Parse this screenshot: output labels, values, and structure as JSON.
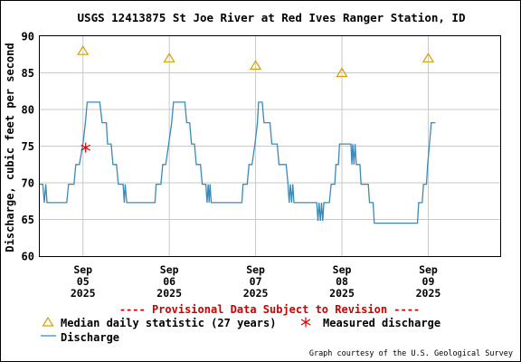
{
  "chart_data": {
    "type": "line",
    "title": "USGS 12413875 St Joe River at Red Ives Ranger Station, ID",
    "ylabel": "Discharge, cubic feet per second",
    "xlabel": "",
    "ylim": [
      60,
      90
    ],
    "yticks": [
      60,
      65,
      70,
      75,
      80,
      85,
      90
    ],
    "xlim": [
      "2025-09-04 12:00",
      "2025-09-09 20:00"
    ],
    "xticks": [
      {
        "x": "2025-09-05 00:00",
        "label": "Sep\n05\n2025"
      },
      {
        "x": "2025-09-06 00:00",
        "label": "Sep\n06\n2025"
      },
      {
        "x": "2025-09-07 00:00",
        "label": "Sep\n07\n2025"
      },
      {
        "x": "2025-09-08 00:00",
        "label": "Sep\n08\n2025"
      },
      {
        "x": "2025-09-09 00:00",
        "label": "Sep\n09\n2025"
      }
    ],
    "grid": true,
    "provisional_note": "---- Provisional Data Subject to Revision ----",
    "courtesy": "Graph courtesy of the U.S. Geological Survey",
    "series": [
      {
        "name": "Median daily statistic (27 years)",
        "marker": "triangle",
        "color": "#d4a000",
        "points": [
          {
            "x": "2025-09-05 00:00",
            "y": 88
          },
          {
            "x": "2025-09-06 00:00",
            "y": 87
          },
          {
            "x": "2025-09-07 00:00",
            "y": 86
          },
          {
            "x": "2025-09-08 00:00",
            "y": 85
          },
          {
            "x": "2025-09-09 00:00",
            "y": 87
          }
        ]
      },
      {
        "name": "Measured discharge",
        "marker": "asterisk",
        "color": "#dd0000",
        "points": [
          {
            "x": "2025-09-05 00:45",
            "y": 74.8
          }
        ]
      },
      {
        "name": "Discharge",
        "marker": "line",
        "color": "#3a8ab8",
        "points": [
          {
            "x": "2025-09-04 12:00",
            "y": 69.8
          },
          {
            "x": "2025-09-04 12:50",
            "y": 69.8
          },
          {
            "x": "2025-09-04 13:15",
            "y": 67.3
          },
          {
            "x": "2025-09-04 13:40",
            "y": 69.8
          },
          {
            "x": "2025-09-04 14:00",
            "y": 67.3
          },
          {
            "x": "2025-09-04 19:30",
            "y": 67.3
          },
          {
            "x": "2025-09-04 20:00",
            "y": 69.8
          },
          {
            "x": "2025-09-04 21:30",
            "y": 69.8
          },
          {
            "x": "2025-09-04 22:00",
            "y": 72.5
          },
          {
            "x": "2025-09-04 23:00",
            "y": 72.5
          },
          {
            "x": "2025-09-05 00:00",
            "y": 75.3
          },
          {
            "x": "2025-09-05 00:40",
            "y": 78.2
          },
          {
            "x": "2025-09-05 01:10",
            "y": 81
          },
          {
            "x": "2025-09-05 04:40",
            "y": 81
          },
          {
            "x": "2025-09-05 05:20",
            "y": 78.2
          },
          {
            "x": "2025-09-05 06:30",
            "y": 78.2
          },
          {
            "x": "2025-09-05 06:50",
            "y": 75.3
          },
          {
            "x": "2025-09-05 07:50",
            "y": 75.3
          },
          {
            "x": "2025-09-05 08:20",
            "y": 72.5
          },
          {
            "x": "2025-09-05 09:20",
            "y": 72.5
          },
          {
            "x": "2025-09-05 09:50",
            "y": 69.8
          },
          {
            "x": "2025-09-05 11:10",
            "y": 69.8
          },
          {
            "x": "2025-09-05 11:30",
            "y": 67.3
          },
          {
            "x": "2025-09-05 11:45",
            "y": 69.8
          },
          {
            "x": "2025-09-05 12:10",
            "y": 67.3
          },
          {
            "x": "2025-09-05 20:00",
            "y": 67.3
          },
          {
            "x": "2025-09-05 20:20",
            "y": 69.8
          },
          {
            "x": "2025-09-05 21:40",
            "y": 69.8
          },
          {
            "x": "2025-09-05 22:10",
            "y": 72.5
          },
          {
            "x": "2025-09-05 23:00",
            "y": 72.5
          },
          {
            "x": "2025-09-05 23:50",
            "y": 75.3
          },
          {
            "x": "2025-09-06 00:40",
            "y": 78.2
          },
          {
            "x": "2025-09-06 01:10",
            "y": 81
          },
          {
            "x": "2025-09-06 04:20",
            "y": 81
          },
          {
            "x": "2025-09-06 04:50",
            "y": 78.2
          },
          {
            "x": "2025-09-06 05:40",
            "y": 78.2
          },
          {
            "x": "2025-09-06 06:10",
            "y": 75.3
          },
          {
            "x": "2025-09-06 07:00",
            "y": 75.3
          },
          {
            "x": "2025-09-06 07:30",
            "y": 72.5
          },
          {
            "x": "2025-09-06 08:40",
            "y": 72.5
          },
          {
            "x": "2025-09-06 09:10",
            "y": 69.8
          },
          {
            "x": "2025-09-06 10:10",
            "y": 69.8
          },
          {
            "x": "2025-09-06 10:30",
            "y": 67.3
          },
          {
            "x": "2025-09-06 10:50",
            "y": 69.8
          },
          {
            "x": "2025-09-06 11:05",
            "y": 67.3
          },
          {
            "x": "2025-09-06 11:20",
            "y": 69.8
          },
          {
            "x": "2025-09-06 11:40",
            "y": 67.3
          },
          {
            "x": "2025-09-06 20:10",
            "y": 67.3
          },
          {
            "x": "2025-09-06 20:30",
            "y": 69.8
          },
          {
            "x": "2025-09-06 21:40",
            "y": 69.8
          },
          {
            "x": "2025-09-06 22:10",
            "y": 72.5
          },
          {
            "x": "2025-09-06 23:00",
            "y": 72.5
          },
          {
            "x": "2025-09-06 23:50",
            "y": 75.3
          },
          {
            "x": "2025-09-07 00:30",
            "y": 78.2
          },
          {
            "x": "2025-09-07 00:50",
            "y": 81
          },
          {
            "x": "2025-09-07 01:50",
            "y": 81
          },
          {
            "x": "2025-09-07 02:20",
            "y": 78.2
          },
          {
            "x": "2025-09-07 04:00",
            "y": 78.2
          },
          {
            "x": "2025-09-07 04:30",
            "y": 75.3
          },
          {
            "x": "2025-09-07 06:00",
            "y": 75.3
          },
          {
            "x": "2025-09-07 06:30",
            "y": 72.5
          },
          {
            "x": "2025-09-07 08:30",
            "y": 72.5
          },
          {
            "x": "2025-09-07 09:00",
            "y": 69.8
          },
          {
            "x": "2025-09-07 09:20",
            "y": 67.3
          },
          {
            "x": "2025-09-07 09:40",
            "y": 69.8
          },
          {
            "x": "2025-09-07 10:00",
            "y": 67.3
          },
          {
            "x": "2025-09-07 10:20",
            "y": 69.8
          },
          {
            "x": "2025-09-07 10:40",
            "y": 67.3
          },
          {
            "x": "2025-09-07 17:00",
            "y": 67.3
          },
          {
            "x": "2025-09-07 17:20",
            "y": 64.8
          },
          {
            "x": "2025-09-07 17:40",
            "y": 67.3
          },
          {
            "x": "2025-09-07 18:00",
            "y": 64.8
          },
          {
            "x": "2025-09-07 18:20",
            "y": 67.3
          },
          {
            "x": "2025-09-07 18:40",
            "y": 64.8
          },
          {
            "x": "2025-09-07 19:00",
            "y": 67.3
          },
          {
            "x": "2025-09-07 20:30",
            "y": 67.3
          },
          {
            "x": "2025-09-07 21:00",
            "y": 69.8
          },
          {
            "x": "2025-09-07 22:00",
            "y": 69.8
          },
          {
            "x": "2025-09-07 22:20",
            "y": 72.5
          },
          {
            "x": "2025-09-07 23:00",
            "y": 72.5
          },
          {
            "x": "2025-09-07 23:20",
            "y": 75.3
          },
          {
            "x": "2025-09-08 02:30",
            "y": 75.3
          },
          {
            "x": "2025-09-08 02:45",
            "y": 72.5
          },
          {
            "x": "2025-09-08 03:00",
            "y": 75.3
          },
          {
            "x": "2025-09-08 03:20",
            "y": 72.5
          },
          {
            "x": "2025-09-08 03:40",
            "y": 75.3
          },
          {
            "x": "2025-09-08 04:00",
            "y": 72.5
          },
          {
            "x": "2025-09-08 05:00",
            "y": 72.5
          },
          {
            "x": "2025-09-08 05:20",
            "y": 69.8
          },
          {
            "x": "2025-09-08 07:20",
            "y": 69.8
          },
          {
            "x": "2025-09-08 07:40",
            "y": 67.3
          },
          {
            "x": "2025-09-08 08:40",
            "y": 67.3
          },
          {
            "x": "2025-09-08 09:00",
            "y": 64.5
          },
          {
            "x": "2025-09-08 21:00",
            "y": 64.5
          },
          {
            "x": "2025-09-08 21:20",
            "y": 67.3
          },
          {
            "x": "2025-09-08 22:20",
            "y": 67.3
          },
          {
            "x": "2025-09-08 22:40",
            "y": 69.8
          },
          {
            "x": "2025-09-08 23:30",
            "y": 69.8
          },
          {
            "x": "2025-09-08 23:50",
            "y": 72.5
          },
          {
            "x": "2025-09-09 00:20",
            "y": 75.3
          },
          {
            "x": "2025-09-09 00:50",
            "y": 78.2
          },
          {
            "x": "2025-09-09 02:00",
            "y": 78.2
          }
        ]
      }
    ]
  },
  "legend": {
    "median_label": "Median daily statistic (27 years)",
    "measured_label": "Measured discharge",
    "discharge_label": "Discharge"
  },
  "colors": {
    "discharge": "#3a8ab8",
    "median": "#d4a000",
    "measured": "#dd0000",
    "grid": "#c8c8c8",
    "provisional": "#cc0000"
  }
}
